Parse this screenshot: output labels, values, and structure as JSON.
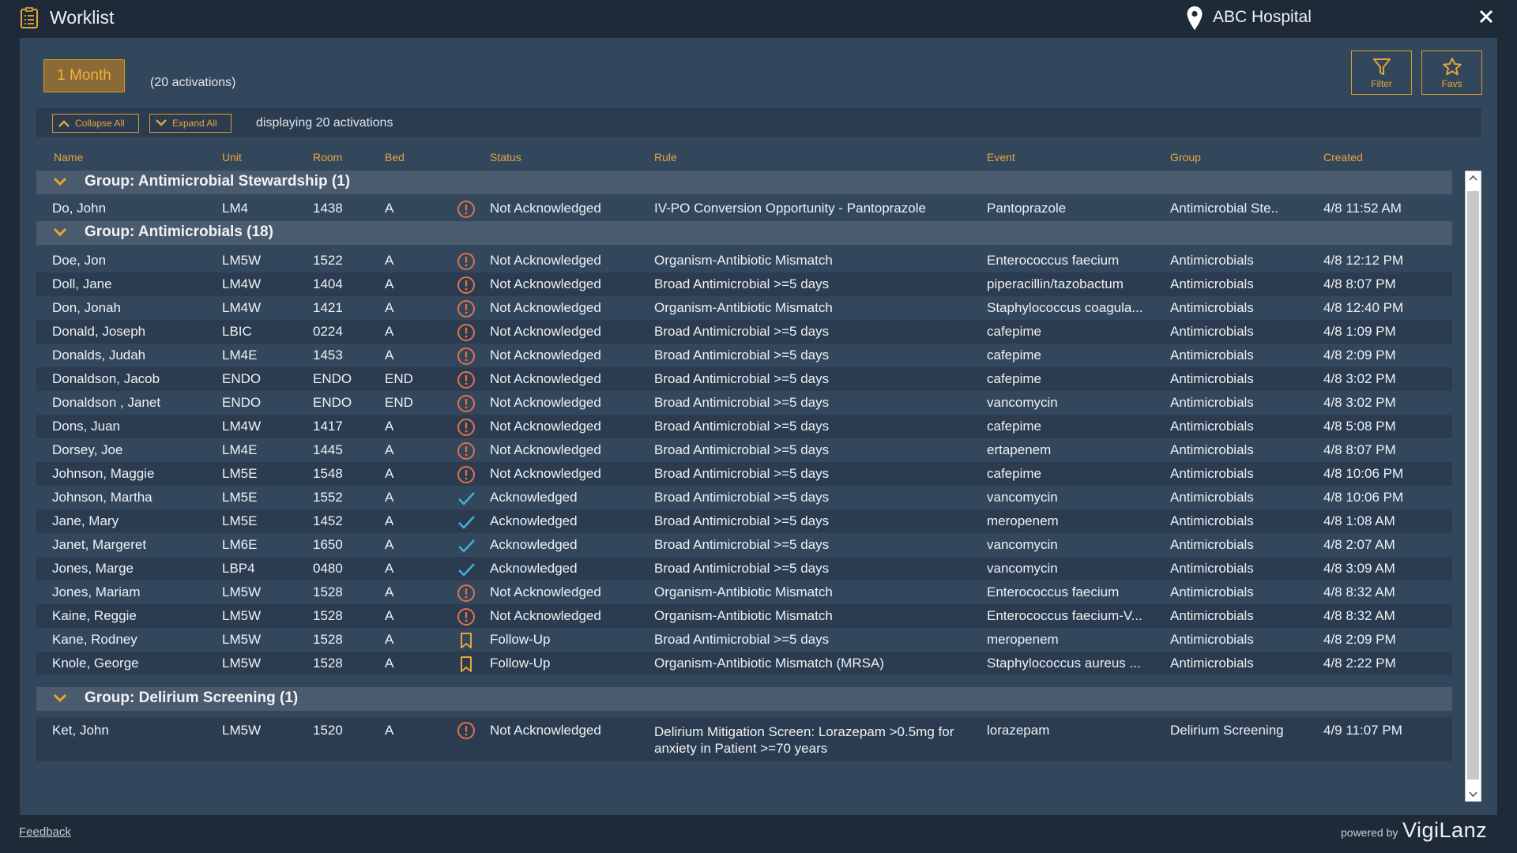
{
  "window": {
    "title": "Worklist",
    "location": "ABC Hospital"
  },
  "summary": {
    "period": "1 Month",
    "activations": "(20 activations)",
    "display_text": "displaying 20 activations"
  },
  "tools": {
    "filter": "Filter",
    "favs": "Favs",
    "collapse": "Collapse All",
    "expand": "Expand All"
  },
  "columns": [
    "Name",
    "Unit",
    "Room",
    "Bed",
    "Status",
    "Rule",
    "Event",
    "Group",
    "Created"
  ],
  "groups": [
    {
      "title": "Group: Antimicrobial Stewardship (1)",
      "rows": [
        {
          "name": "Do, John",
          "unit": "LM4",
          "room": "1438",
          "bed": "A",
          "status_icon": "alert-icon",
          "status": "Not Acknowledged",
          "rule": "IV-PO Conversion Opportunity - Pantoprazole",
          "event": "Pantoprazole",
          "group": "Antimicrobial Ste..",
          "created": "4/8 11:52 AM"
        }
      ]
    },
    {
      "title": "Group: Antimicrobials (18)",
      "rows": [
        {
          "name": "Doe, Jon",
          "unit": "LM5W",
          "room": "1522",
          "bed": "A",
          "status_icon": "alert-icon",
          "status": "Not Acknowledged",
          "rule": "Organism-Antibiotic Mismatch",
          "event": "Enterococcus faecium",
          "group": "Antimicrobials",
          "created": "4/8 12:12 PM"
        },
        {
          "name": "Doll, Jane",
          "unit": "LM4W",
          "room": "1404",
          "bed": "A",
          "status_icon": "alert-icon",
          "status": "Not Acknowledged",
          "rule": "Broad Antimicrobial >=5 days",
          "event": "piperacillin/tazobactum",
          "group": "Antimicrobials",
          "created": "4/8 8:07 PM"
        },
        {
          "name": "Don, Jonah",
          "unit": "LM4W",
          "room": "1421",
          "bed": "A",
          "status_icon": "alert-icon",
          "status": "Not Acknowledged",
          "rule": "Organism-Antibiotic Mismatch",
          "event": "Staphylococcus coagula...",
          "group": "Antimicrobials",
          "created": "4/8 12:40 PM"
        },
        {
          "name": "Donald, Joseph",
          "unit": "LBIC",
          "room": "0224",
          "bed": "A",
          "status_icon": "alert-icon",
          "status": "Not Acknowledged",
          "rule": "Broad Antimicrobial >=5 days",
          "event": "cafepime",
          "group": "Antimicrobials",
          "created": "4/8 1:09 PM"
        },
        {
          "name": "Donalds, Judah",
          "unit": "LM4E",
          "room": "1453",
          "bed": "A",
          "status_icon": "alert-icon",
          "status": "Not Acknowledged",
          "rule": "Broad Antimicrobial >=5 days",
          "event": "cafepime",
          "group": "Antimicrobials",
          "created": "4/8 2:09 PM"
        },
        {
          "name": "Donaldson, Jacob",
          "unit": "ENDO",
          "room": "ENDO",
          "bed": "END",
          "status_icon": "alert-icon",
          "status": "Not Acknowledged",
          "rule": "Broad Antimicrobial >=5 days",
          "event": "cafepime",
          "group": "Antimicrobials",
          "created": "4/8 3:02 PM"
        },
        {
          "name": "Donaldson , Janet",
          "unit": "ENDO",
          "room": "ENDO",
          "bed": "END",
          "status_icon": "alert-icon",
          "status": "Not Acknowledged",
          "rule": "Broad Antimicrobial >=5 days",
          "event": "vancomycin",
          "group": "Antimicrobials",
          "created": "4/8 3:02 PM"
        },
        {
          "name": "Dons, Juan",
          "unit": "LM4W",
          "room": "1417",
          "bed": "A",
          "status_icon": "alert-icon",
          "status": "Not Acknowledged",
          "rule": "Broad Antimicrobial >=5 days",
          "event": "cafepime",
          "group": "Antimicrobials",
          "created": "4/8 5:08 PM"
        },
        {
          "name": "Dorsey, Joe",
          "unit": "LM4E",
          "room": "1445",
          "bed": "A",
          "status_icon": "alert-icon",
          "status": "Not Acknowledged",
          "rule": "Broad Antimicrobial >=5 days",
          "event": "ertapenem",
          "group": "Antimicrobials",
          "created": "4/8 8:07 PM"
        },
        {
          "name": "Johnson, Maggie",
          "unit": "LM5E",
          "room": "1548",
          "bed": "A",
          "status_icon": "alert-icon",
          "status": "Not Acknowledged",
          "rule": "Broad Antimicrobial >=5 days",
          "event": "cafepime",
          "group": "Antimicrobials",
          "created": "4/8 10:06 PM"
        },
        {
          "name": "Johnson, Martha",
          "unit": "LM5E",
          "room": "1552",
          "bed": "A",
          "status_icon": "check-icon",
          "status": "Acknowledged",
          "rule": "Broad Antimicrobial >=5 days",
          "event": "vancomycin",
          "group": "Antimicrobials",
          "created": "4/8 10:06 PM"
        },
        {
          "name": "Jane, Mary",
          "unit": "LM5E",
          "room": "1452",
          "bed": "A",
          "status_icon": "check-icon",
          "status": "Acknowledged",
          "rule": "Broad Antimicrobial >=5 days",
          "event": "meropenem",
          "group": "Antimicrobials",
          "created": "4/8 1:08 AM"
        },
        {
          "name": "Janet, Margeret",
          "unit": "LM6E",
          "room": "1650",
          "bed": "A",
          "status_icon": "check-icon",
          "status": "Acknowledged",
          "rule": "Broad Antimicrobial >=5 days",
          "event": "vancomycin",
          "group": "Antimicrobials",
          "created": "4/8 2:07 AM"
        },
        {
          "name": "Jones, Marge",
          "unit": "LBP4",
          "room": "0480",
          "bed": "A",
          "status_icon": "check-icon",
          "status": "Acknowledged",
          "rule": "Broad Antimicrobial >=5 days",
          "event": "vancomycin",
          "group": "Antimicrobials",
          "created": "4/8 3:09 AM"
        },
        {
          "name": "Jones, Mariam",
          "unit": "LM5W",
          "room": "1528",
          "bed": "A",
          "status_icon": "alert-icon",
          "status": "Not Acknowledged",
          "rule": "Organism-Antibiotic Mismatch",
          "event": "Enterococcus faecium",
          "group": "Antimicrobials",
          "created": "4/8 8:32 AM"
        },
        {
          "name": "Kaine, Reggie",
          "unit": "LM5W",
          "room": "1528",
          "bed": "A",
          "status_icon": "alert-icon",
          "status": "Not Acknowledged",
          "rule": "Organism-Antibiotic Mismatch",
          "event": "Enterococcus faecium-V...",
          "group": "Antimicrobials",
          "created": "4/8 8:32 AM"
        },
        {
          "name": "Kane, Rodney",
          "unit": "LM5W",
          "room": "1528",
          "bed": "A",
          "status_icon": "bookmark-icon",
          "status": "Follow-Up",
          "rule": "Broad Antimicrobial >=5 days",
          "event": "meropenem",
          "group": "Antimicrobials",
          "created": "4/8 2:09 PM"
        },
        {
          "name": "Knole, George",
          "unit": "LM5W",
          "room": "1528",
          "bed": "A",
          "status_icon": "bookmark-icon",
          "status": "Follow-Up",
          "rule": "Organism-Antibiotic Mismatch (MRSA)",
          "event": "Staphylococcus aureus ...",
          "group": "Antimicrobials",
          "created": "4/8 2:22 PM"
        }
      ]
    },
    {
      "title": "Group: Delirium Screening (1)",
      "rows": [
        {
          "name": "Ket, John",
          "unit": "LM5W",
          "room": "1520",
          "bed": "A",
          "status_icon": "alert-icon",
          "status": "Not Acknowledged",
          "rule": "Delirium Mitigation Screen: Lorazepam >0.5mg for anxiety in Patient >=70 years",
          "event": "lorazepam",
          "group": "Delirium Screening",
          "created": "4/9 11:07 PM"
        }
      ]
    }
  ],
  "footer": {
    "feedback": "Feedback",
    "powered": "powered by",
    "brand": "VigiLanz"
  },
  "colors": {
    "accent": "#e7a53a",
    "alert": "#e2704a",
    "check": "#3fb4d6",
    "panel": "#33475c",
    "background": "#1f2a38"
  }
}
